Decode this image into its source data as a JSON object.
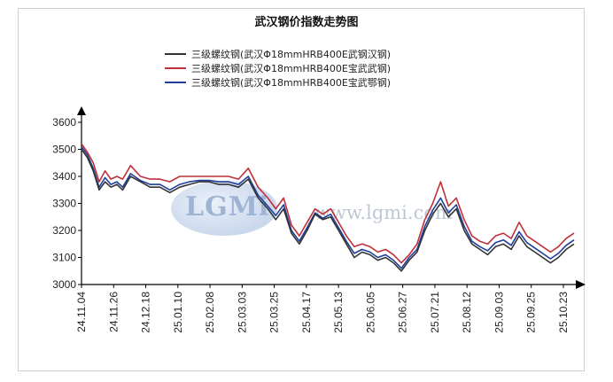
{
  "chart_data": {
    "type": "line",
    "title": "武汉钢价指数走势图",
    "xlabel": "",
    "ylabel": "",
    "ylim": [
      3000,
      3600
    ],
    "yticks": [
      3000,
      3100,
      3200,
      3300,
      3400,
      3500,
      3600
    ],
    "xtick_labels": [
      "24.11.04",
      "24.11.26",
      "24.12.18",
      "25.01.10",
      "25.02.08",
      "25.03.03",
      "25.03.25",
      "25.04.17",
      "25.05.13",
      "25.06.05",
      "25.06.27",
      "25.07.21",
      "25.08.12",
      "25.09.03",
      "25.09.25",
      "25.10.23"
    ],
    "grid": false,
    "legend_position": "top",
    "x_index_range": [
      0,
      251
    ],
    "series": [
      {
        "name": "三级螺纹钢(武汉Φ18mmHRB400E武钢汉钢)",
        "color": "#333333",
        "x": [
          0,
          3,
          6,
          9,
          12,
          15,
          18,
          21,
          25,
          30,
          35,
          40,
          45,
          50,
          55,
          60,
          65,
          70,
          75,
          80,
          85,
          90,
          95,
          99,
          103,
          107,
          111,
          115,
          119,
          123,
          127,
          131,
          135,
          139,
          143,
          147,
          151,
          155,
          159,
          163,
          167,
          171,
          175,
          179,
          183,
          187,
          191,
          195,
          199,
          203,
          207,
          211,
          215,
          219,
          223,
          227,
          231,
          235,
          239,
          243,
          247,
          251
        ],
        "y": [
          3500,
          3470,
          3420,
          3350,
          3380,
          3360,
          3370,
          3350,
          3400,
          3380,
          3360,
          3360,
          3340,
          3360,
          3370,
          3380,
          3380,
          3370,
          3370,
          3360,
          3390,
          3320,
          3280,
          3240,
          3280,
          3190,
          3150,
          3200,
          3260,
          3240,
          3250,
          3200,
          3150,
          3100,
          3120,
          3110,
          3090,
          3100,
          3080,
          3050,
          3090,
          3120,
          3200,
          3260,
          3300,
          3250,
          3280,
          3200,
          3150,
          3130,
          3110,
          3140,
          3150,
          3130,
          3180,
          3140,
          3120,
          3100,
          3080,
          3100,
          3130,
          3150
        ]
      },
      {
        "name": "三级螺纹钢(武汉Φ18mmHRB400E宝武武钢)",
        "color": "#c0303a",
        "x": [
          0,
          3,
          6,
          9,
          12,
          15,
          18,
          21,
          25,
          30,
          35,
          40,
          45,
          50,
          55,
          60,
          65,
          70,
          75,
          80,
          85,
          90,
          95,
          99,
          103,
          107,
          111,
          115,
          119,
          123,
          127,
          131,
          135,
          139,
          143,
          147,
          151,
          155,
          159,
          163,
          167,
          171,
          175,
          179,
          183,
          187,
          191,
          195,
          199,
          203,
          207,
          211,
          215,
          219,
          223,
          227,
          231,
          235,
          239,
          243,
          247,
          251
        ],
        "y": [
          3520,
          3490,
          3450,
          3380,
          3420,
          3390,
          3400,
          3390,
          3440,
          3400,
          3390,
          3390,
          3380,
          3400,
          3400,
          3400,
          3400,
          3400,
          3400,
          3390,
          3430,
          3360,
          3320,
          3280,
          3320,
          3220,
          3180,
          3230,
          3280,
          3260,
          3280,
          3230,
          3180,
          3140,
          3150,
          3140,
          3120,
          3130,
          3110,
          3080,
          3110,
          3150,
          3240,
          3300,
          3380,
          3290,
          3320,
          3240,
          3180,
          3160,
          3150,
          3180,
          3190,
          3170,
          3230,
          3180,
          3160,
          3140,
          3120,
          3140,
          3170,
          3190
        ]
      },
      {
        "name": "三级螺纹钢(武汉Φ18mmHRB400E宝武鄂钢)",
        "color": "#1f3f9c",
        "x": [
          0,
          3,
          6,
          9,
          12,
          15,
          18,
          21,
          25,
          30,
          35,
          40,
          45,
          50,
          55,
          60,
          65,
          70,
          75,
          80,
          85,
          90,
          95,
          99,
          103,
          107,
          111,
          115,
          119,
          123,
          127,
          131,
          135,
          139,
          143,
          147,
          151,
          155,
          159,
          163,
          167,
          171,
          175,
          179,
          183,
          187,
          191,
          195,
          199,
          203,
          207,
          211,
          215,
          219,
          223,
          227,
          231,
          235,
          239,
          243,
          247,
          251
        ],
        "y": [
          3510,
          3480,
          3430,
          3360,
          3395,
          3370,
          3380,
          3360,
          3410,
          3385,
          3370,
          3370,
          3350,
          3370,
          3380,
          3385,
          3385,
          3380,
          3380,
          3370,
          3400,
          3330,
          3290,
          3255,
          3295,
          3200,
          3160,
          3210,
          3265,
          3245,
          3260,
          3210,
          3160,
          3115,
          3130,
          3120,
          3100,
          3110,
          3090,
          3060,
          3100,
          3130,
          3215,
          3275,
          3320,
          3265,
          3295,
          3215,
          3160,
          3140,
          3125,
          3155,
          3165,
          3145,
          3195,
          3155,
          3135,
          3115,
          3095,
          3115,
          3145,
          3165
        ]
      }
    ]
  },
  "watermark": {
    "logo_text": "LGMi",
    "url_text": "www.lgmi.com"
  }
}
